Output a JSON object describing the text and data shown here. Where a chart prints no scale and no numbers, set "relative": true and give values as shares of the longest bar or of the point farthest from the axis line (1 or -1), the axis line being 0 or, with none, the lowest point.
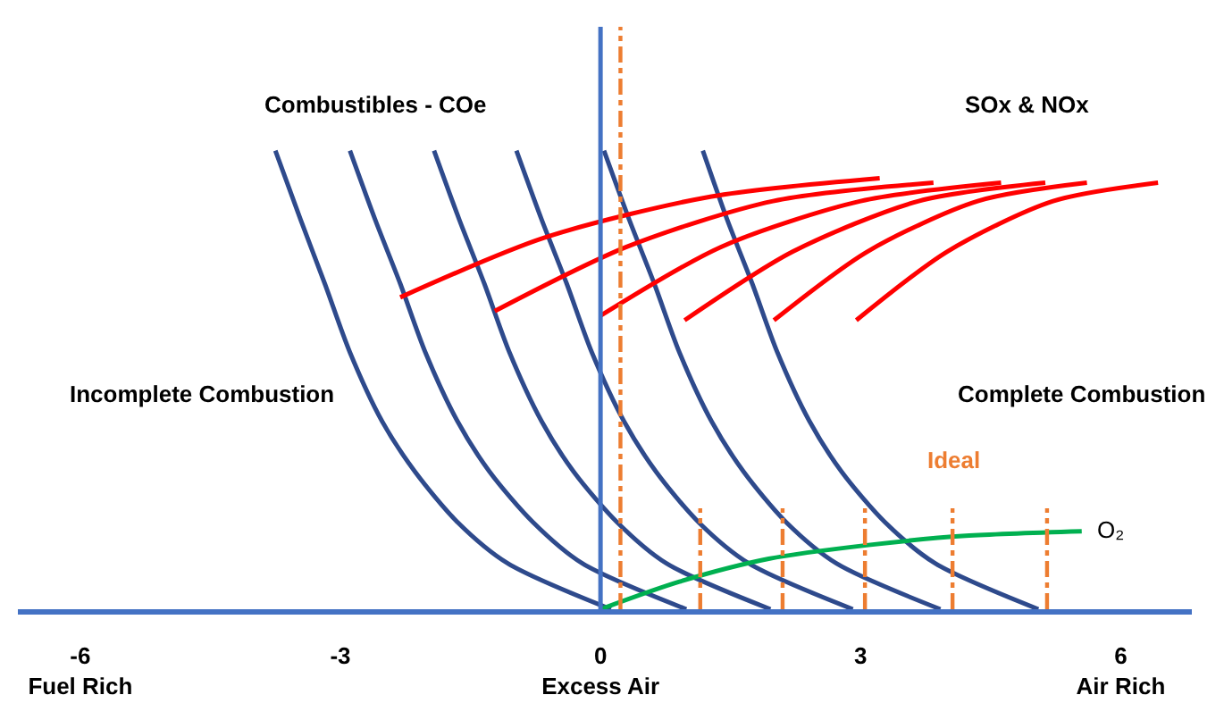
{
  "chart_data": {
    "type": "line",
    "relative": true,
    "tick_labels": "x",
    "xlim": [
      -6.72,
      6.82
    ],
    "xticks": [
      {
        "value": -6,
        "label": "-6\nFuel Rich"
      },
      -3,
      {
        "value": 0,
        "label": "0\nExcess Air"
      },
      3,
      {
        "value": 6,
        "label": "6\nAir Rich"
      }
    ],
    "series": [
      {
        "color": "#2e4a8c",
        "x": [
          -3.75,
          -3.46,
          -3.18,
          -2.89,
          -2.52,
          -2.14,
          -1.65,
          -1.07,
          0.12
        ],
        "values": [
          1,
          0.85,
          0.71,
          0.56,
          0.41,
          0.3,
          0.19,
          0.1,
          0
        ]
      },
      {
        "color": "#2e4a8c",
        "x": [
          -2.89,
          -2.6,
          -2.31,
          -2.02,
          -1.65,
          -1.28,
          -0.78,
          -0.21,
          0.99
        ],
        "values": [
          1,
          0.85,
          0.71,
          0.56,
          0.41,
          0.3,
          0.19,
          0.1,
          0
        ]
      },
      {
        "color": "#2e4a8c",
        "x": [
          -1.92,
          -1.63,
          -1.34,
          -1.05,
          -0.68,
          -0.31,
          0.19,
          0.76,
          1.96
        ],
        "values": [
          1,
          0.85,
          0.71,
          0.56,
          0.41,
          0.3,
          0.19,
          0.1,
          0
        ]
      },
      {
        "color": "#2e4a8c",
        "x": [
          -0.97,
          -0.68,
          -0.39,
          -0.1,
          0.27,
          0.64,
          1.13,
          1.71,
          2.91
        ],
        "values": [
          1,
          0.85,
          0.71,
          0.56,
          0.41,
          0.3,
          0.19,
          0.1,
          0
        ]
      },
      {
        "color": "#2e4a8c",
        "x": [
          0.04,
          0.33,
          0.62,
          0.91,
          1.28,
          1.65,
          2.14,
          2.72,
          3.92
        ],
        "values": [
          1,
          0.85,
          0.71,
          0.56,
          0.41,
          0.3,
          0.19,
          0.1,
          0
        ]
      },
      {
        "color": "#2e4a8c",
        "x": [
          1.18,
          1.46,
          1.75,
          2.04,
          2.41,
          2.78,
          3.28,
          3.86,
          5.05
        ],
        "values": [
          1,
          0.85,
          0.71,
          0.56,
          0.41,
          0.3,
          0.19,
          0.1,
          0
        ]
      },
      {
        "color": "#ff0000",
        "x": [
          -2.31,
          -0.65,
          1.28,
          3.22
        ],
        "values": [
          0.68,
          0.81,
          0.9,
          0.94
        ]
      },
      {
        "color": "#ff0000",
        "x": [
          -1.22,
          0.3,
          1.99,
          3.84
        ],
        "values": [
          0.65,
          0.79,
          0.89,
          0.93
        ]
      },
      {
        "color": "#ff0000",
        "x": [
          0,
          1.39,
          3.0,
          4.62
        ],
        "values": [
          0.64,
          0.79,
          0.89,
          0.93
        ]
      },
      {
        "color": "#ff0000",
        "x": [
          0.97,
          2.22,
          3.67,
          5.13
        ],
        "values": [
          0.63,
          0.78,
          0.89,
          0.93
        ]
      },
      {
        "color": "#ff0000",
        "x": [
          2.0,
          3.08,
          4.35,
          5.61
        ],
        "values": [
          0.63,
          0.78,
          0.89,
          0.93
        ]
      },
      {
        "color": "#ff0000",
        "x": [
          2.95,
          4.0,
          5.22,
          6.43
        ],
        "values": [
          0.63,
          0.78,
          0.89,
          0.93
        ]
      },
      {
        "color": "#00b050",
        "x": [
          0,
          0.91,
          1.94,
          3.09,
          4.21,
          5.55
        ],
        "values": [
          0,
          0.06,
          0.11,
          0.14,
          0.16,
          0.17
        ]
      },
      {
        "color": "#ed7d31",
        "line_style": "dashed",
        "x": [
          1.15,
          1.15
        ],
        "values": [
          0,
          0.22
        ]
      },
      {
        "color": "#ed7d31",
        "line_style": "dashed",
        "x": [
          2.1,
          2.1
        ],
        "values": [
          0,
          0.22
        ]
      },
      {
        "color": "#ed7d31",
        "line_style": "dashed",
        "x": [
          3.05,
          3.05
        ],
        "values": [
          0,
          0.22
        ]
      },
      {
        "color": "#ed7d31",
        "line_style": "dashed",
        "x": [
          4.06,
          4.06
        ],
        "values": [
          0,
          0.22
        ]
      },
      {
        "color": "#ed7d31",
        "line_style": "dashed",
        "x": [
          5.15,
          5.15
        ],
        "values": [
          0,
          0.22
        ]
      }
    ],
    "ref_lines": [
      {
        "axis": "x",
        "value": 0,
        "color": "#4472c4"
      },
      {
        "axis": "x",
        "value": 0.23,
        "color": "#ed7d31",
        "line_style": "dashed"
      }
    ],
    "annotations": [
      "Combustibles - COe",
      "SOx & NOx",
      "Incomplete Combustion",
      "Complete Combustion",
      "Ideal",
      "O₂"
    ]
  }
}
